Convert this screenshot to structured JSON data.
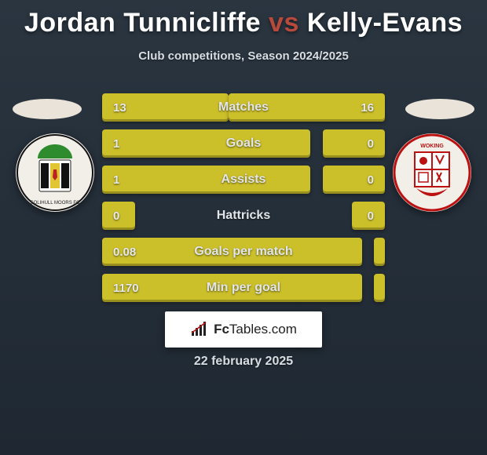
{
  "header": {
    "player1": "Jordan Tunnicliffe",
    "vs": "vs",
    "player2": "Kelly-Evans",
    "subtitle": "Club competitions, Season 2024/2025"
  },
  "stats": {
    "rows": [
      {
        "label": "Matches",
        "left_val": "13",
        "right_val": "16",
        "left_pct": 44.8,
        "right_pct": 55.2
      },
      {
        "label": "Goals",
        "left_val": "1",
        "right_val": "0",
        "left_pct": 73.5,
        "right_pct": 22.0
      },
      {
        "label": "Assists",
        "left_val": "1",
        "right_val": "0",
        "left_pct": 73.5,
        "right_pct": 22.0
      },
      {
        "label": "Hattricks",
        "left_val": "0",
        "right_val": "0",
        "left_pct": 11.6,
        "right_pct": 11.6
      },
      {
        "label": "Goals per match",
        "left_val": "0.08",
        "right_val": "",
        "left_pct": 92.0,
        "right_pct": 4.0
      },
      {
        "label": "Min per goal",
        "left_val": "1170",
        "right_val": "",
        "left_pct": 92.0,
        "right_pct": 4.0
      }
    ],
    "bar_color": "#cbbf2a",
    "track_bg": "transparent"
  },
  "footer": {
    "brand_prefix": "Fc",
    "brand_suffix": "Tables.com",
    "date": "22 february 2025"
  },
  "colors": {
    "bg_top": "#2a3540",
    "bg_bottom": "#1f2832",
    "title_text": "#ffffff",
    "title_accent": "#b94a3b",
    "subtitle_text": "#d8dde2",
    "stat_label": "#e2e6ea",
    "ellipse": "#e9e3da",
    "badge_bg": "#f2efe9"
  }
}
